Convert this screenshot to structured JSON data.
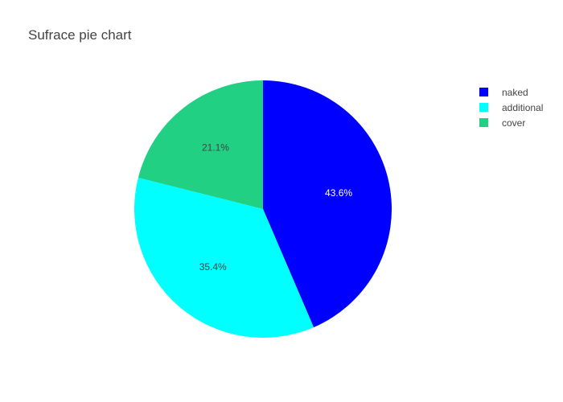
{
  "chart_data": {
    "type": "pie",
    "title": "Sufrace pie chart",
    "categories": [
      "naked",
      "additional",
      "cover"
    ],
    "values": [
      43.6,
      35.4,
      21.1
    ],
    "labels": [
      "43.6%",
      "35.4%",
      "21.1%"
    ],
    "colors": [
      "#0000ff",
      "#00ffff",
      "#22d083"
    ],
    "label_colors": [
      "#ffffff",
      "#444444",
      "#444444"
    ],
    "legend_position": "top-right",
    "direction": "clockwise",
    "start_angle": "top"
  }
}
